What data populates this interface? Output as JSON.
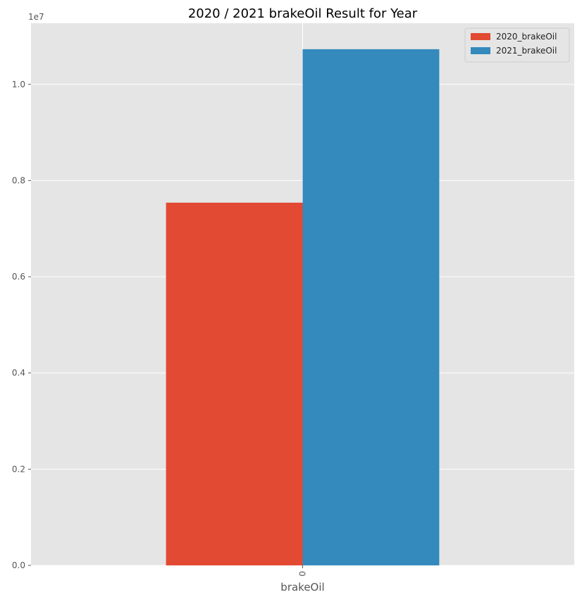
{
  "chart_data": {
    "type": "bar",
    "title": "2020 / 2021 brakeOil Result for Year",
    "xlabel": "brakeOil",
    "ylabel": "",
    "categories": [
      "0"
    ],
    "series": [
      {
        "name": "2020_brakeOil",
        "values": [
          7540000
        ],
        "color": "#E24A33"
      },
      {
        "name": "2021_brakeOil",
        "values": [
          10730000
        ],
        "color": "#348ABD"
      }
    ],
    "ylim": [
      0,
      11270000
    ],
    "y_ticks": [
      0,
      2000000,
      4000000,
      6000000,
      8000000,
      10000000
    ],
    "y_tick_labels": [
      "0.0",
      "0.2",
      "0.4",
      "0.6",
      "0.8",
      "1.0"
    ],
    "y_offset_label": "1e7",
    "grid": true,
    "legend_position": "top-right",
    "background_color": "#E5E5E5"
  }
}
